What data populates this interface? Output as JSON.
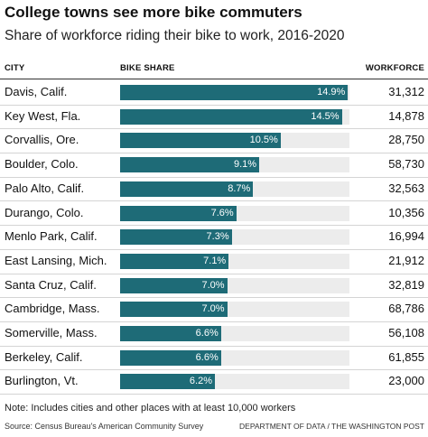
{
  "chart_data": {
    "type": "bar",
    "orientation": "horizontal",
    "title": "College towns see more bike commuters",
    "subtitle": "Share of workforce riding their bike to work, 2016-2020",
    "columns": {
      "city": "CITY",
      "share": "BIKE SHARE",
      "workforce": "WORKFORCE"
    },
    "xlim": [
      0,
      15
    ],
    "rows": [
      {
        "city": "Davis, Calif.",
        "share": 14.9,
        "share_label": "14.9%",
        "workforce": "31,312"
      },
      {
        "city": "Key West, Fla.",
        "share": 14.5,
        "share_label": "14.5%",
        "workforce": "14,878"
      },
      {
        "city": "Corvallis, Ore.",
        "share": 10.5,
        "share_label": "10.5%",
        "workforce": "28,750"
      },
      {
        "city": "Boulder, Colo.",
        "share": 9.1,
        "share_label": "9.1%",
        "workforce": "58,730"
      },
      {
        "city": "Palo Alto, Calif.",
        "share": 8.7,
        "share_label": "8.7%",
        "workforce": "32,563"
      },
      {
        "city": "Durango, Colo.",
        "share": 7.6,
        "share_label": "7.6%",
        "workforce": "10,356"
      },
      {
        "city": "Menlo Park, Calif.",
        "share": 7.3,
        "share_label": "7.3%",
        "workforce": "16,994"
      },
      {
        "city": "East Lansing, Mich.",
        "share": 7.1,
        "share_label": "7.1%",
        "workforce": "21,912"
      },
      {
        "city": "Santa Cruz, Calif.",
        "share": 7.0,
        "share_label": "7.0%",
        "workforce": "32,819"
      },
      {
        "city": "Cambridge, Mass.",
        "share": 7.0,
        "share_label": "7.0%",
        "workforce": "68,786"
      },
      {
        "city": "Somerville, Mass.",
        "share": 6.6,
        "share_label": "6.6%",
        "workforce": "56,108"
      },
      {
        "city": "Berkeley, Calif.",
        "share": 6.6,
        "share_label": "6.6%",
        "workforce": "61,855"
      },
      {
        "city": "Burlington, Vt.",
        "share": 6.2,
        "share_label": "6.2%",
        "workforce": "23,000"
      }
    ],
    "note": "Note: Includes cities and other places with at least 10,000 workers",
    "source": "Source: Census Bureau's American Community Survey",
    "credit": "DEPARTMENT OF DATA / THE WASHINGTON POST"
  },
  "colors": {
    "bar": "#1e6b77",
    "track": "#ececec"
  }
}
